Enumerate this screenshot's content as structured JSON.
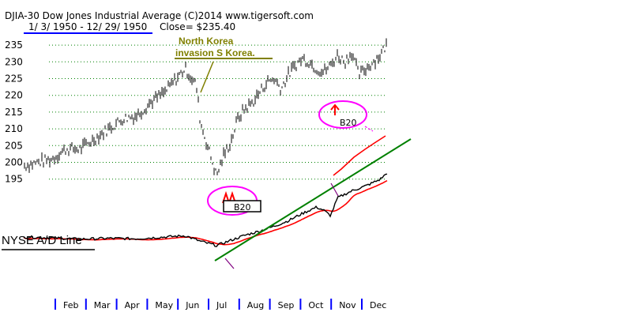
{
  "header": {
    "line1": "DJIA-30  Dow Jones Industrial Average  (C)2014 www.tigersoft.com",
    "date_range": "1/ 3/ 1950  -  12/ 29/ 1950",
    "close": "Close= $235.40"
  },
  "annotations": {
    "north_korea_line1": "North Korea",
    "north_korea_line2": "invasion S Korea.",
    "b20_lower": "B20",
    "b20_upper": "B20",
    "ad_line_label": "NYSE A/D Line"
  },
  "colors": {
    "price": "#000000",
    "ad_line": "#000000",
    "ma": "#ff0000",
    "trendline": "#008000",
    "annotation_olive": "#808000",
    "circles": "#ff00ff",
    "arrows": "#ff0000",
    "date_underline": "#0000ff",
    "grid": "#008000"
  },
  "chart_data": {
    "type": "line",
    "title": "DJIA-30  Dow Jones Industrial Average",
    "ylim": [
      190,
      237
    ],
    "yticks": [
      195,
      200,
      205,
      210,
      215,
      220,
      225,
      230,
      235
    ],
    "months": [
      "Feb",
      "Mar",
      "Apr",
      "May",
      "Jun",
      "Jul",
      "Aug",
      "Sep",
      "Oct",
      "Nov",
      "Dec"
    ],
    "series": [
      {
        "name": "DJIA-30",
        "x": [
          "1950-01-03",
          "1950-01-17",
          "1950-01-31",
          "1950-02-14",
          "1950-02-28",
          "1950-03-14",
          "1950-03-28",
          "1950-04-11",
          "1950-04-25",
          "1950-05-09",
          "1950-05-23",
          "1950-06-06",
          "1950-06-12",
          "1950-06-23",
          "1950-06-27",
          "1950-07-05",
          "1950-07-13",
          "1950-07-20",
          "1950-07-27",
          "1950-08-03",
          "1950-08-10",
          "1950-08-18",
          "1950-08-25",
          "1950-09-01",
          "1950-09-08",
          "1950-09-15",
          "1950-09-22",
          "1950-09-29",
          "1950-10-06",
          "1950-10-13",
          "1950-10-20",
          "1950-10-27",
          "1950-11-03",
          "1950-11-10",
          "1950-11-17",
          "1950-11-24",
          "1950-12-01",
          "1950-12-08",
          "1950-12-15",
          "1950-12-22",
          "1950-12-29"
        ],
        "values": [
          199,
          200,
          201,
          204,
          204,
          207,
          210,
          213,
          214,
          218,
          221,
          226,
          228,
          223,
          212,
          204,
          196,
          202,
          206,
          213,
          216,
          218,
          221,
          224,
          225,
          222,
          226,
          229,
          231,
          230,
          228,
          227,
          229,
          232,
          230,
          233,
          226,
          228,
          230,
          232,
          235.4
        ]
      },
      {
        "name": "NYSE A/D Line",
        "x": [
          "1950-01-03",
          "1950-01-31",
          "1950-02-28",
          "1950-03-28",
          "1950-04-25",
          "1950-05-23",
          "1950-06-12",
          "1950-06-27",
          "1950-07-13",
          "1950-07-27",
          "1950-08-10",
          "1950-08-25",
          "1950-09-08",
          "1950-09-22",
          "1950-10-06",
          "1950-10-20",
          "1950-10-27",
          "1950-11-03",
          "1950-11-10",
          "1950-11-24",
          "1950-12-08",
          "1950-12-22",
          "1950-12-29"
        ],
        "values": [
          0,
          -2,
          -5,
          -3,
          -4,
          0,
          3,
          -10,
          -20,
          -8,
          4,
          14,
          25,
          38,
          55,
          70,
          63,
          50,
          92,
          108,
          120,
          135,
          150
        ]
      }
    ]
  }
}
